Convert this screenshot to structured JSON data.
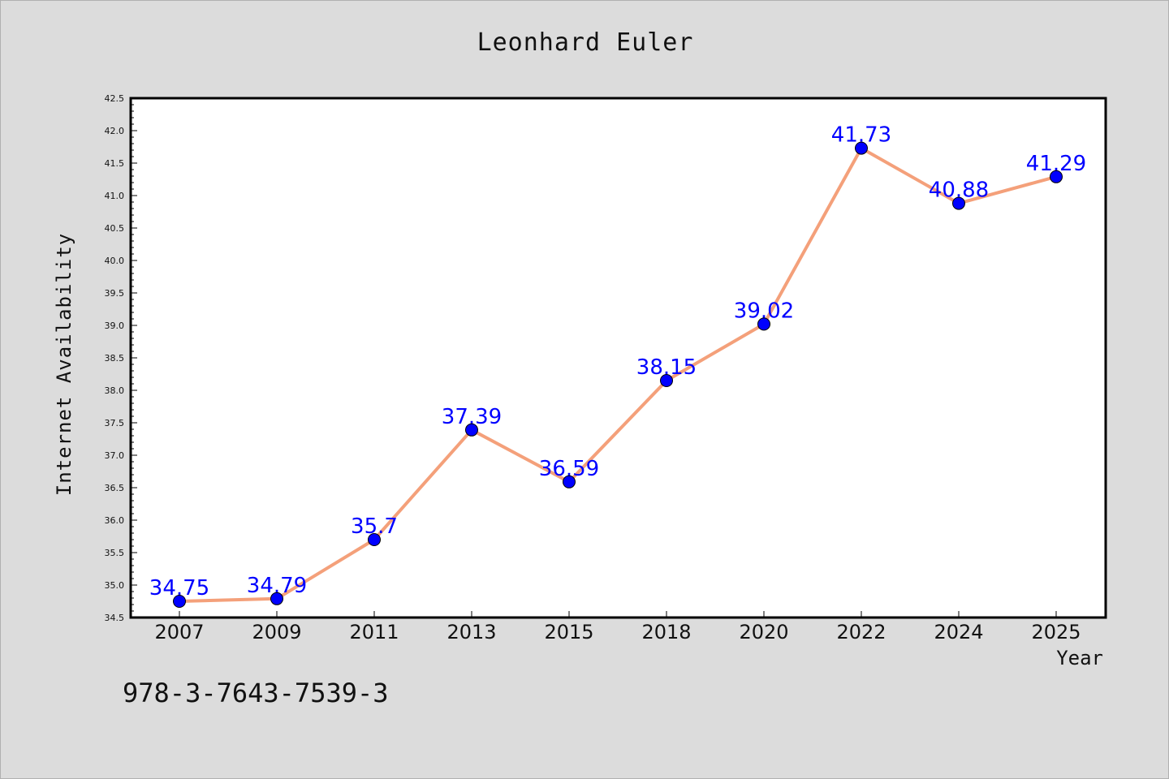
{
  "chart_data": {
    "type": "line",
    "title": "Leonhard Euler",
    "xlabel": "Year",
    "ylabel": "Internet Availability",
    "categories": [
      "2007",
      "2009",
      "2011",
      "2013",
      "2015",
      "2018",
      "2020",
      "2022",
      "2024",
      "2025"
    ],
    "series": [
      {
        "values": [
          34.75,
          34.79,
          35.7,
          37.39,
          36.59,
          38.15,
          39.02,
          41.73,
          40.88,
          41.29
        ],
        "labels": [
          "34.75",
          "34.79",
          "35.7",
          "37.39",
          "36.59",
          "38.15",
          "39.02",
          "41.73",
          "40.88",
          "41.29"
        ]
      }
    ],
    "ylim": [
      34.5,
      42.5
    ],
    "yticks": [
      "34.5",
      "35.0",
      "35.5",
      "36.0",
      "36.5",
      "37.0",
      "37.5",
      "38.0",
      "38.5",
      "39.0",
      "39.5",
      "40.0",
      "40.5",
      "41.0",
      "41.5",
      "42.0",
      "42.5"
    ],
    "grid": false,
    "legend": "none",
    "colors": {
      "line": "#f4a07a",
      "marker": "#0000ff",
      "label": "#0000ff",
      "background": "#dcdcdc",
      "plot_background": "#ffffff"
    }
  },
  "annotation": {
    "isbn": "978-3-7643-7539-3"
  }
}
